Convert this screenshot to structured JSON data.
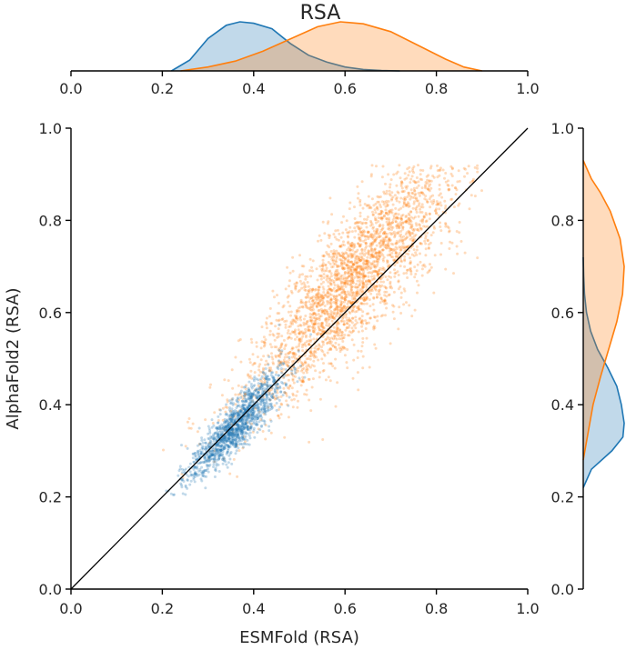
{
  "chart_data": {
    "type": "scatter",
    "title": "RSA",
    "xlabel": "ESMFold (RSA)",
    "ylabel": "AlphaFold2 (RSA)",
    "xlim": [
      0.0,
      1.0
    ],
    "ylim": [
      0.0,
      1.0
    ],
    "xticks": [
      "0.0",
      "0.2",
      "0.4",
      "0.6",
      "0.8",
      "1.0"
    ],
    "yticks": [
      "0.0",
      "0.2",
      "0.4",
      "0.6",
      "0.8",
      "1.0"
    ],
    "grid": false,
    "reference_line": {
      "x": [
        0.0,
        1.0
      ],
      "y": [
        0.0,
        1.0
      ],
      "color": "#000000"
    },
    "series": [
      {
        "color": "#1f77b4",
        "point_cloud": {
          "n": 1400,
          "x_center": 0.36,
          "x_spread": 0.05,
          "slope": 0.98,
          "intercept": 0.0,
          "noise": 0.028
        },
        "x_marginal_density": {
          "x": [
            0.22,
            0.26,
            0.3,
            0.34,
            0.37,
            0.4,
            0.44,
            0.48,
            0.52,
            0.56,
            0.6,
            0.64,
            0.68,
            0.72
          ],
          "density": [
            0.0,
            0.22,
            0.66,
            0.93,
            1.0,
            0.97,
            0.86,
            0.56,
            0.32,
            0.18,
            0.08,
            0.03,
            0.01,
            0.0
          ]
        },
        "y_marginal_density": {
          "y": [
            0.22,
            0.26,
            0.3,
            0.33,
            0.36,
            0.4,
            0.44,
            0.48,
            0.52,
            0.56,
            0.6,
            0.64,
            0.68,
            0.72
          ],
          "density": [
            0.0,
            0.2,
            0.7,
            0.97,
            1.0,
            0.93,
            0.82,
            0.6,
            0.35,
            0.18,
            0.08,
            0.03,
            0.01,
            0.0
          ]
        }
      },
      {
        "color": "#ff7f0e",
        "point_cloud": {
          "n": 2800,
          "x_center": 0.62,
          "x_spread": 0.12,
          "slope": 1.02,
          "intercept": 0.04,
          "noise": 0.06
        },
        "x_marginal_density": {
          "x": [
            0.24,
            0.3,
            0.36,
            0.42,
            0.48,
            0.54,
            0.59,
            0.64,
            0.7,
            0.76,
            0.82,
            0.86,
            0.9
          ],
          "density": [
            0.0,
            0.08,
            0.2,
            0.4,
            0.65,
            0.9,
            1.0,
            0.96,
            0.8,
            0.52,
            0.24,
            0.08,
            0.0
          ]
        },
        "y_marginal_density": {
          "y": [
            0.28,
            0.34,
            0.4,
            0.46,
            0.52,
            0.58,
            0.64,
            0.7,
            0.76,
            0.82,
            0.86,
            0.89,
            0.93
          ],
          "density": [
            0.0,
            0.12,
            0.24,
            0.42,
            0.62,
            0.82,
            0.96,
            1.0,
            0.9,
            0.66,
            0.42,
            0.2,
            0.0
          ]
        }
      }
    ]
  }
}
